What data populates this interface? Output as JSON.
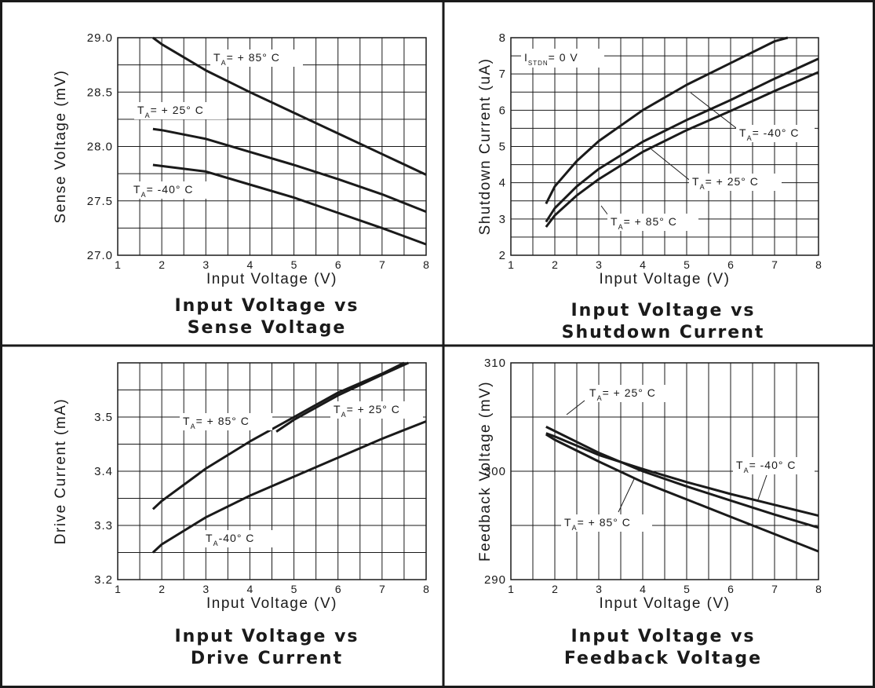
{
  "chart_data": [
    {
      "type": "line",
      "title_lines": [
        "Input Voltage vs",
        "Sense Voltage"
      ],
      "xlabel": "Input Voltage (V)",
      "ylabel": "Sense Voltage (mV)",
      "xlim": [
        1,
        8
      ],
      "ylim": [
        27.0,
        29.0
      ],
      "xticks": [
        "1",
        "2",
        "3",
        "4",
        "5",
        "6",
        "7",
        "8"
      ],
      "yticks": [
        "27.0",
        "27.5",
        "28.0",
        "28.5",
        "29.0"
      ],
      "grid": true,
      "series": [
        {
          "name": "TA= + 85° C",
          "x": [
            1.8,
            2,
            3,
            4,
            5,
            6,
            7,
            8
          ],
          "y": [
            29.0,
            28.94,
            28.7,
            28.5,
            28.31,
            28.12,
            27.93,
            27.74
          ]
        },
        {
          "name": "TA= + 25° C",
          "x": [
            1.8,
            2,
            3,
            4,
            5,
            6,
            7,
            8
          ],
          "y": [
            28.16,
            28.15,
            28.07,
            27.95,
            27.83,
            27.7,
            27.56,
            27.4
          ]
        },
        {
          "name": "TA= -40° C",
          "x": [
            1.8,
            2,
            3,
            4,
            5,
            6,
            7,
            8
          ],
          "y": [
            27.83,
            27.82,
            27.77,
            27.65,
            27.53,
            27.39,
            27.25,
            27.1
          ]
        }
      ]
    },
    {
      "type": "line",
      "title_lines": [
        "Input Voltage vs",
        "Shutdown Current"
      ],
      "xlabel": "Input Voltage (V)",
      "ylabel": "Shutdown Current (uA)",
      "xlim": [
        1,
        8
      ],
      "ylim": [
        2,
        8
      ],
      "xticks": [
        "1",
        "2",
        "3",
        "4",
        "5",
        "6",
        "7",
        "8"
      ],
      "yticks": [
        "2",
        "3",
        "4",
        "5",
        "6",
        "7",
        "8"
      ],
      "grid": true,
      "annotation": "ISTDN= 0 V",
      "series": [
        {
          "name": "TA= + 85° C",
          "x": [
            1.8,
            2,
            2.5,
            3,
            4,
            5,
            6,
            7,
            7.3
          ],
          "y": [
            3.42,
            3.9,
            4.6,
            5.15,
            6.0,
            6.7,
            7.3,
            7.9,
            8.0
          ]
        },
        {
          "name": "TA= + 25° C",
          "x": [
            1.8,
            2,
            2.5,
            3,
            4,
            5,
            6,
            7,
            8
          ],
          "y": [
            2.92,
            3.3,
            3.9,
            4.38,
            5.13,
            5.73,
            6.28,
            6.87,
            7.42
          ]
        },
        {
          "name": "TA= -40° C",
          "x": [
            1.8,
            2,
            2.5,
            3,
            4,
            5,
            6,
            7,
            8
          ],
          "y": [
            2.78,
            3.1,
            3.65,
            4.1,
            4.85,
            5.45,
            5.98,
            6.53,
            7.05
          ]
        }
      ]
    },
    {
      "type": "line",
      "title_lines": [
        "Input Voltage vs",
        "Drive Current"
      ],
      "xlabel": "Input Voltage (V)",
      "ylabel": "Drive Current (mA)",
      "xlim": [
        1,
        8
      ],
      "ylim": [
        3.2,
        3.6
      ],
      "xticks": [
        "1",
        "2",
        "3",
        "4",
        "5",
        "6",
        "7",
        "8"
      ],
      "yticks": [
        "3.2",
        "3.3",
        "3.4",
        "3.5"
      ],
      "grid": true,
      "series": [
        {
          "name": "TA= + 85° C",
          "x": [
            1.8,
            2,
            3,
            4,
            5,
            6,
            7,
            7.5
          ],
          "y": [
            3.33,
            3.345,
            3.405,
            3.455,
            3.5,
            3.545,
            3.58,
            3.6
          ]
        },
        {
          "name": "TA= + 25° C",
          "x": [
            4.6,
            5,
            6,
            7,
            7.6
          ],
          "y": [
            3.473,
            3.495,
            3.54,
            3.578,
            3.6
          ]
        },
        {
          "name": "TA-40° C",
          "x": [
            1.8,
            2,
            3,
            4,
            5,
            6,
            7,
            8
          ],
          "y": [
            3.25,
            3.265,
            3.315,
            3.355,
            3.39,
            3.425,
            3.46,
            3.492
          ]
        }
      ]
    },
    {
      "type": "line",
      "title_lines": [
        "Input Voltage vs",
        "Feedback Voltage"
      ],
      "xlabel": "Input Voltage (V)",
      "ylabel": "Feedback Voltage (mV)",
      "xlim": [
        1,
        8
      ],
      "ylim": [
        290,
        310
      ],
      "xticks": [
        "1",
        "2",
        "3",
        "4",
        "5",
        "6",
        "7",
        "8"
      ],
      "yticks": [
        "290",
        "300",
        "310"
      ],
      "grid": true,
      "series": [
        {
          "name": "TA= + 25° C",
          "x": [
            1.8,
            2,
            3,
            4,
            5,
            6,
            7,
            8
          ],
          "y": [
            304.1,
            303.7,
            301.7,
            300.0,
            298.6,
            297.3,
            296.0,
            294.8
          ]
        },
        {
          "name": "TA= -40° C",
          "x": [
            1.8,
            2,
            3,
            4,
            5,
            6,
            7,
            8
          ],
          "y": [
            303.5,
            303.2,
            301.5,
            300.2,
            299.0,
            297.9,
            296.9,
            295.9
          ]
        },
        {
          "name": "TA= + 85° C",
          "x": [
            1.8,
            2,
            3,
            4,
            5,
            6,
            7,
            8
          ],
          "y": [
            303.4,
            302.9,
            300.9,
            299.0,
            297.4,
            295.8,
            294.2,
            292.6
          ]
        }
      ]
    }
  ]
}
